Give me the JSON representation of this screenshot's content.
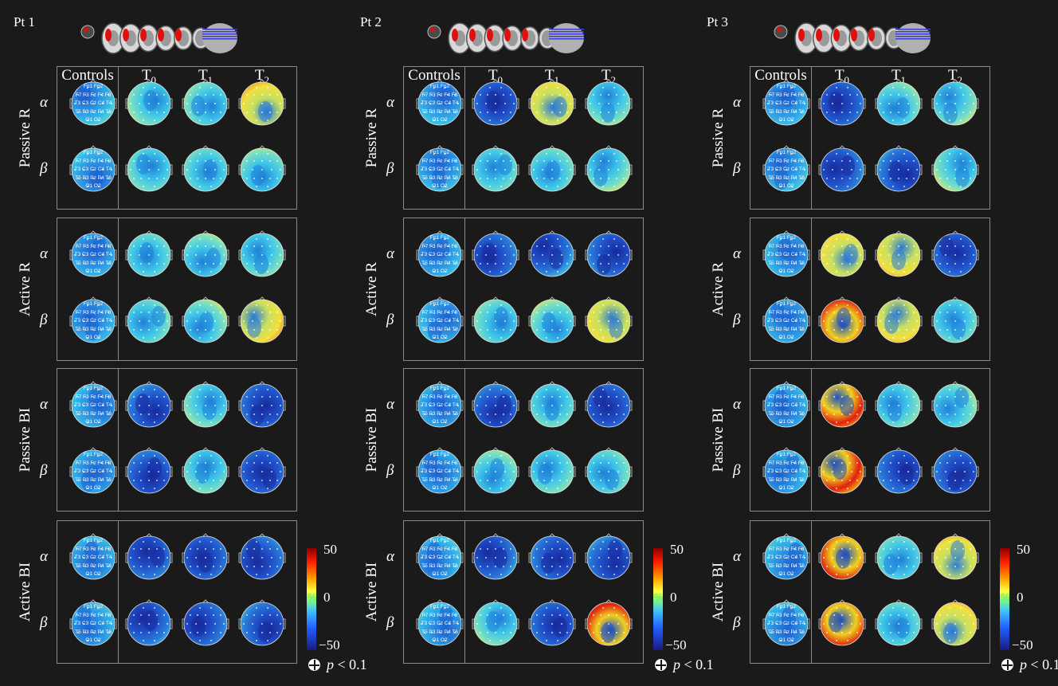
{
  "patients": [
    {
      "label": "Pt 1",
      "conditions": [
        {
          "label": "Passive R",
          "alpha": [
            "neutral",
            "cyan",
            "cyan",
            "warm"
          ],
          "beta": [
            "neutral",
            "cyan",
            "cyan",
            "cyan"
          ]
        },
        {
          "label": "Active R",
          "alpha": [
            "neutral",
            "cyan",
            "cyan",
            "cyan"
          ],
          "beta": [
            "neutral",
            "cyan",
            "cyan",
            "warm"
          ]
        },
        {
          "label": "Passive BI",
          "alpha": [
            "neutral",
            "blue",
            "cyan",
            "blue"
          ],
          "beta": [
            "neutral",
            "blue",
            "cyan",
            "blue"
          ]
        },
        {
          "label": "Active BI",
          "alpha": [
            "neutral",
            "blue",
            "blue",
            "blue"
          ],
          "beta": [
            "neutral",
            "blue",
            "blue",
            "blue"
          ]
        }
      ]
    },
    {
      "label": "Pt 2",
      "conditions": [
        {
          "label": "Passive R",
          "alpha": [
            "neutral",
            "blue",
            "warm",
            "cyan"
          ],
          "beta": [
            "neutral",
            "cyan",
            "cyan",
            "cyan"
          ]
        },
        {
          "label": "Active R",
          "alpha": [
            "neutral",
            "blue",
            "blue",
            "blue"
          ],
          "beta": [
            "neutral",
            "cyan",
            "cyan",
            "warm"
          ]
        },
        {
          "label": "Passive BI",
          "alpha": [
            "neutral",
            "blue",
            "cyan",
            "blue"
          ],
          "beta": [
            "neutral",
            "cyan",
            "cyan",
            "cyan"
          ]
        },
        {
          "label": "Active BI",
          "alpha": [
            "neutral",
            "blue",
            "blue",
            "blue"
          ],
          "beta": [
            "neutral",
            "cyan",
            "blue",
            "hot"
          ]
        }
      ]
    },
    {
      "label": "Pt 3",
      "conditions": [
        {
          "label": "Passive R",
          "alpha": [
            "neutral",
            "blue",
            "cyan",
            "cyan"
          ],
          "beta": [
            "neutral",
            "blue",
            "blue",
            "cyan"
          ]
        },
        {
          "label": "Active R",
          "alpha": [
            "neutral",
            "warm",
            "warm",
            "blue"
          ],
          "beta": [
            "neutral",
            "hot",
            "warm",
            "cyan"
          ]
        },
        {
          "label": "Passive BI",
          "alpha": [
            "neutral",
            "hot",
            "cyan",
            "cyan"
          ],
          "beta": [
            "neutral",
            "hot",
            "blue",
            "blue"
          ]
        },
        {
          "label": "Active BI",
          "alpha": [
            "neutral",
            "hot",
            "cyan",
            "warm"
          ],
          "beta": [
            "neutral",
            "hot",
            "cyan",
            "warm"
          ]
        }
      ]
    }
  ],
  "columns": {
    "controls": "Controls",
    "t": "T",
    "subs": [
      "0",
      "1",
      "2"
    ]
  },
  "bands": {
    "alpha": "α",
    "beta": "β"
  },
  "electrodes": {
    "row1": "Fp1  Fp2",
    "row2": "F7 F3 Fz F4 F8",
    "row3": "T3 C3 Cz C4 T4",
    "row4": "T5 P3 Pz P4 T6",
    "row5": "O1  O2"
  },
  "colorbar": {
    "max": "50",
    "mid": "0",
    "min": "−50",
    "unit": "%"
  },
  "significance": {
    "symbol": "p",
    "text": " < 0.1"
  },
  "colors": {
    "background": "#1a1a1a",
    "border": "#8a8a8a",
    "lesion": "#e01010"
  }
}
